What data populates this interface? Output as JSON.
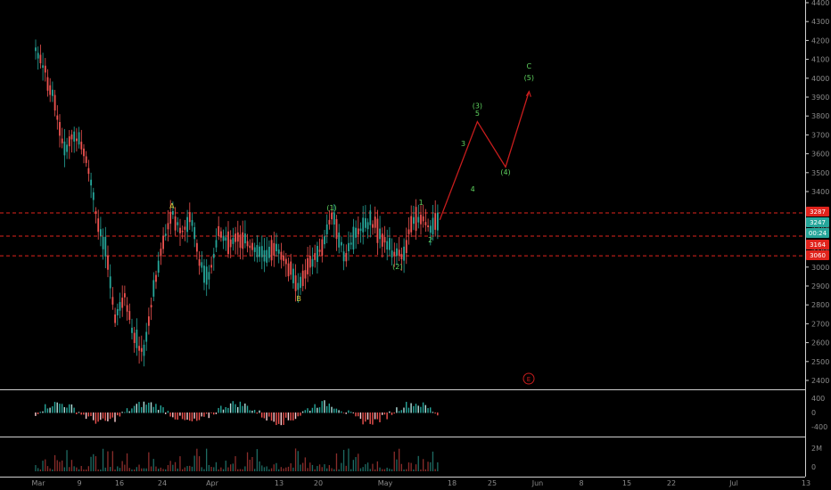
{
  "chart_data": {
    "type": "candlestick",
    "price_axis": {
      "ticks": [
        "4400",
        "4300",
        "4200",
        "4100",
        "4000",
        "3900",
        "3800",
        "3700",
        "3600",
        "3500",
        "3400",
        "3300",
        "3200",
        "3100",
        "3000",
        "2900",
        "2800",
        "2700",
        "2600",
        "2500",
        "2400"
      ],
      "ylim": [
        2380,
        4420
      ]
    },
    "time_axis": {
      "ticks": [
        "Mar",
        "9",
        "16",
        "24",
        "Apr",
        "13",
        "20",
        "May",
        "18",
        "25",
        "Jun",
        "15",
        "8",
        "22",
        "Jul",
        "13"
      ]
    },
    "price_series": [
      [
        "Mar 1",
        4150
      ],
      [
        "Mar 3",
        4040
      ],
      [
        "Mar 5",
        3880
      ],
      [
        "Mar 7",
        3620
      ],
      [
        "Mar 9",
        3700
      ],
      [
        "Mar 11",
        3640
      ],
      [
        "Mar 13",
        3420
      ],
      [
        "Mar 14",
        3260
      ],
      [
        "Mar 16",
        3080
      ],
      [
        "Mar 18",
        2720
      ],
      [
        "Mar 20",
        2850
      ],
      [
        "Mar 22",
        2620
      ],
      [
        "Mar 24",
        2540
      ],
      [
        "Mar 26",
        2860
      ],
      [
        "Mar 28",
        3120
      ],
      [
        "Mar 30",
        3290
      ],
      [
        "Apr 1",
        3180
      ],
      [
        "Apr 3",
        3260
      ],
      [
        "Apr 5",
        3020
      ],
      [
        "Apr 7",
        2950
      ],
      [
        "Apr 9",
        3200
      ],
      [
        "Apr 11",
        3120
      ],
      [
        "Apr 13",
        3160
      ],
      [
        "Apr 16",
        3100
      ],
      [
        "Apr 19",
        3050
      ],
      [
        "Apr 21",
        3130
      ],
      [
        "Apr 24",
        2980
      ],
      [
        "Apr 26",
        2880
      ],
      [
        "Apr 28",
        3000
      ],
      [
        "May 1",
        3100
      ],
      [
        "May 3",
        3280
      ],
      [
        "May 6",
        3050
      ],
      [
        "May 8",
        3180
      ],
      [
        "May 11",
        3240
      ],
      [
        "May 14",
        3170
      ],
      [
        "May 16",
        3060
      ],
      [
        "May 18",
        3070
      ],
      [
        "May 20",
        3230
      ],
      [
        "May 22",
        3270
      ],
      [
        "May 24",
        3200
      ],
      [
        "May 26",
        3250
      ]
    ],
    "projection": [
      [
        "May 26",
        3250
      ],
      [
        "Jun 3",
        3770
      ],
      [
        "Jun 9",
        3530
      ],
      [
        "Jun 14",
        3930
      ]
    ],
    "horizontal_levels": [
      3287,
      3164,
      3060
    ],
    "price_labels": [
      {
        "text": "3287",
        "color": "#e0231c"
      },
      {
        "text": "3247",
        "color": "#26a69a"
      },
      {
        "text": "00:24",
        "color": "#26a69a"
      },
      {
        "text": "3164",
        "color": "#e0231c"
      },
      {
        "text": "3060",
        "color": "#e0231c"
      }
    ],
    "wave_labels": [
      {
        "text": "A",
        "x": "Mar 30",
        "y": 3310,
        "color": "yellow"
      },
      {
        "text": "B",
        "x": "Apr 26",
        "y": 2820,
        "color": "yellow"
      },
      {
        "text": "(1)",
        "x": "May 3",
        "y": 3300,
        "color": "green"
      },
      {
        "text": "(2)",
        "x": "May 17",
        "y": 2990,
        "color": "green"
      },
      {
        "text": "1",
        "x": "May 22",
        "y": 3330,
        "color": "green"
      },
      {
        "text": "2",
        "x": "May 24",
        "y": 3130,
        "color": "green"
      },
      {
        "text": "3",
        "x": "May 31",
        "y": 3640,
        "color": "green"
      },
      {
        "text": "4",
        "x": "Jun 2",
        "y": 3400,
        "color": "green"
      },
      {
        "text": "5",
        "x": "Jun 3",
        "y": 3800,
        "color": "green"
      },
      {
        "text": "(3)",
        "x": "Jun 3",
        "y": 3840,
        "color": "green"
      },
      {
        "text": "(4)",
        "x": "Jun 9",
        "y": 3490,
        "color": "green"
      },
      {
        "text": "(5)",
        "x": "Jun 14",
        "y": 3990,
        "color": "green"
      },
      {
        "text": "C",
        "x": "Jun 14",
        "y": 4050,
        "color": "green"
      }
    ],
    "macd_axis": {
      "ticks": [
        "400",
        "0",
        "-400"
      ]
    },
    "volume_axis": {
      "ticks": [
        "2M",
        "0"
      ]
    },
    "event_marker": "E"
  }
}
